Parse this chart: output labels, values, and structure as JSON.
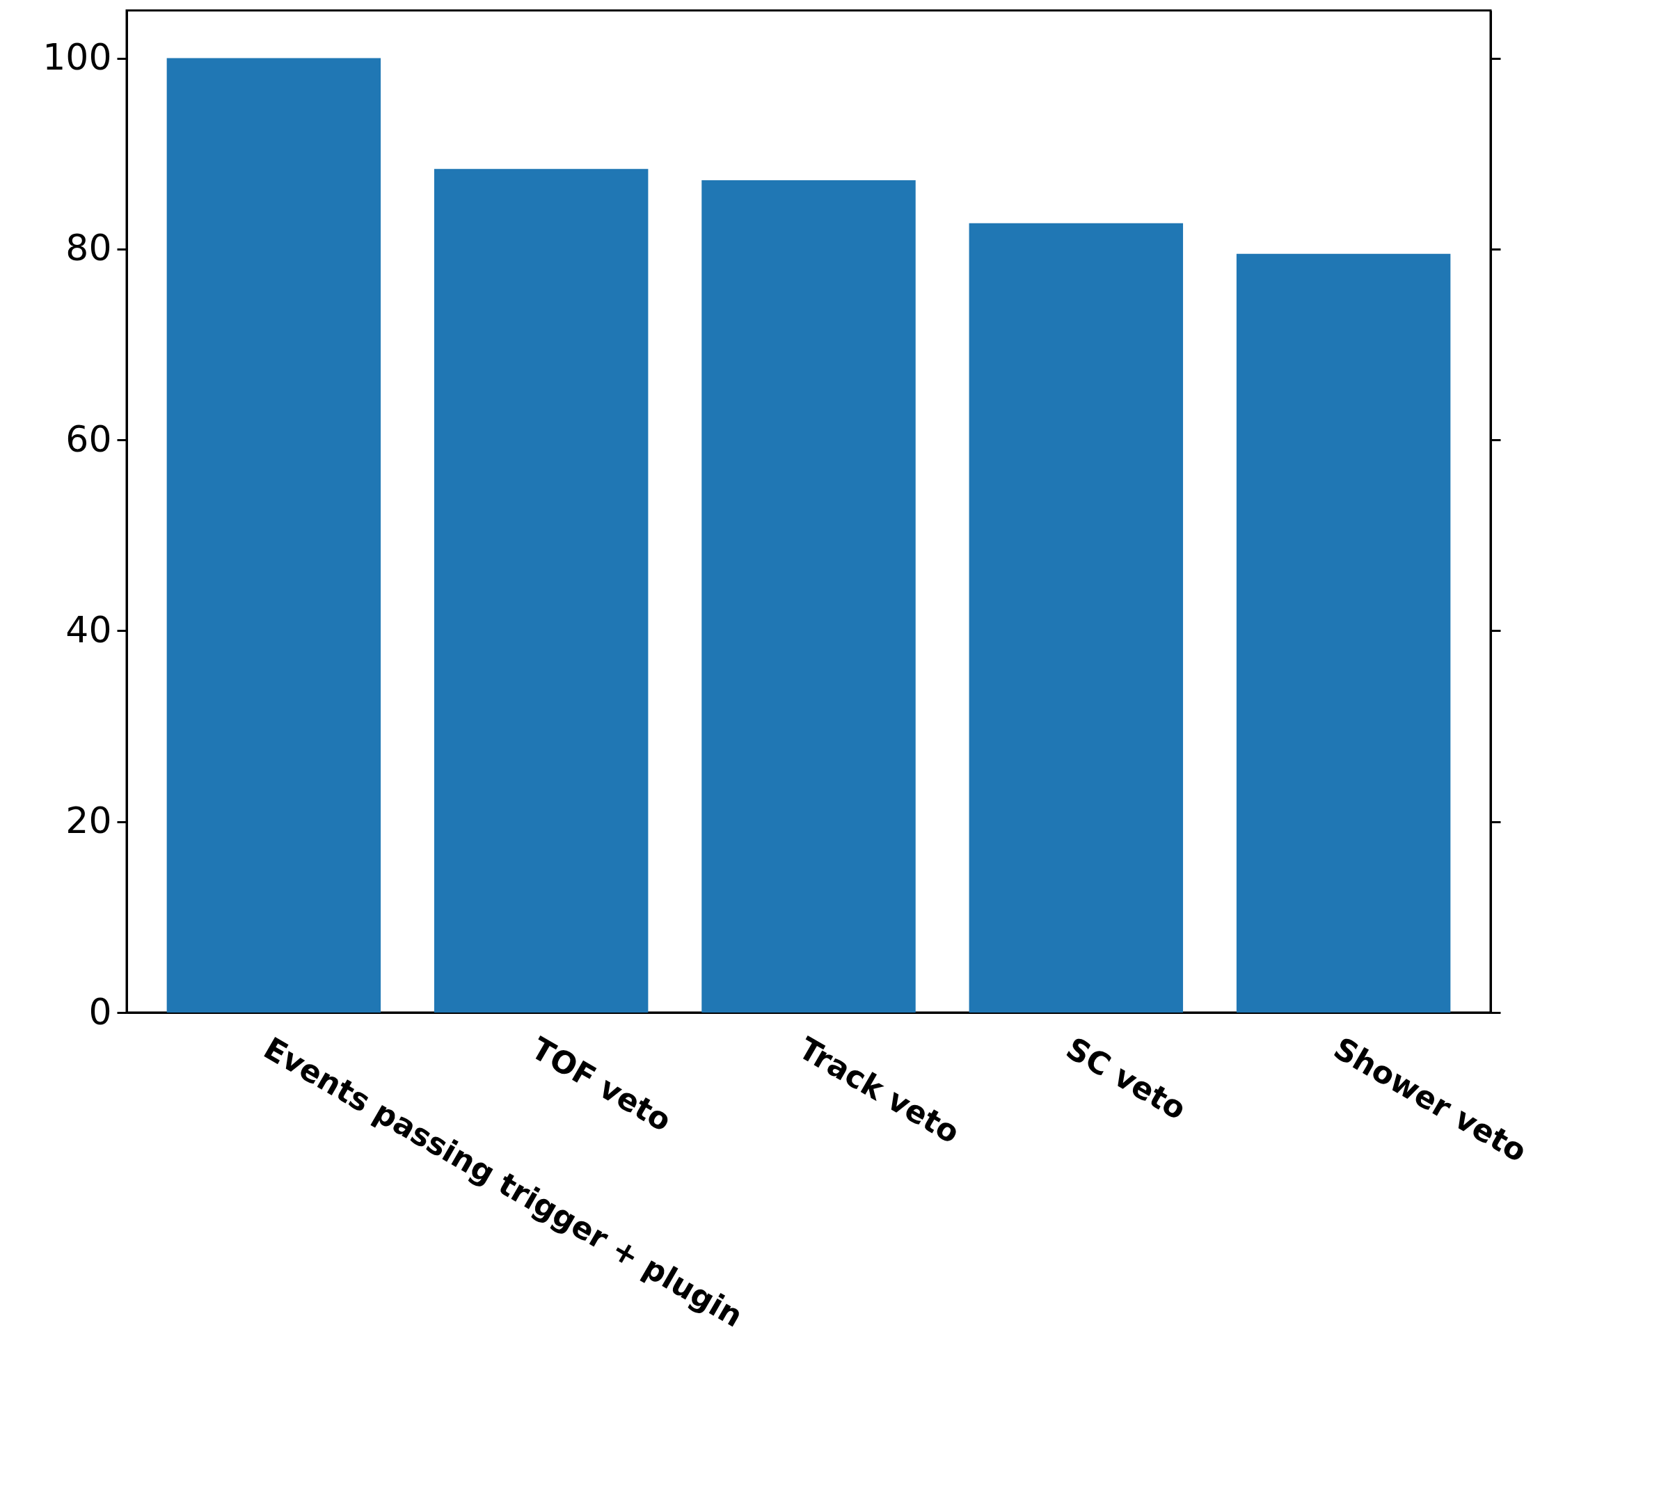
{
  "chart_data": {
    "type": "bar",
    "categories": [
      "Events passing trigger + plugin",
      "TOF veto",
      "Track veto",
      "SC veto",
      "Shower veto"
    ],
    "values": [
      100,
      88.4,
      87.2,
      82.7,
      79.5
    ],
    "color": "#2077b4",
    "ylim": [
      0,
      105
    ],
    "yticks": [
      0,
      20,
      40,
      60,
      80,
      100
    ],
    "grid": false
  }
}
